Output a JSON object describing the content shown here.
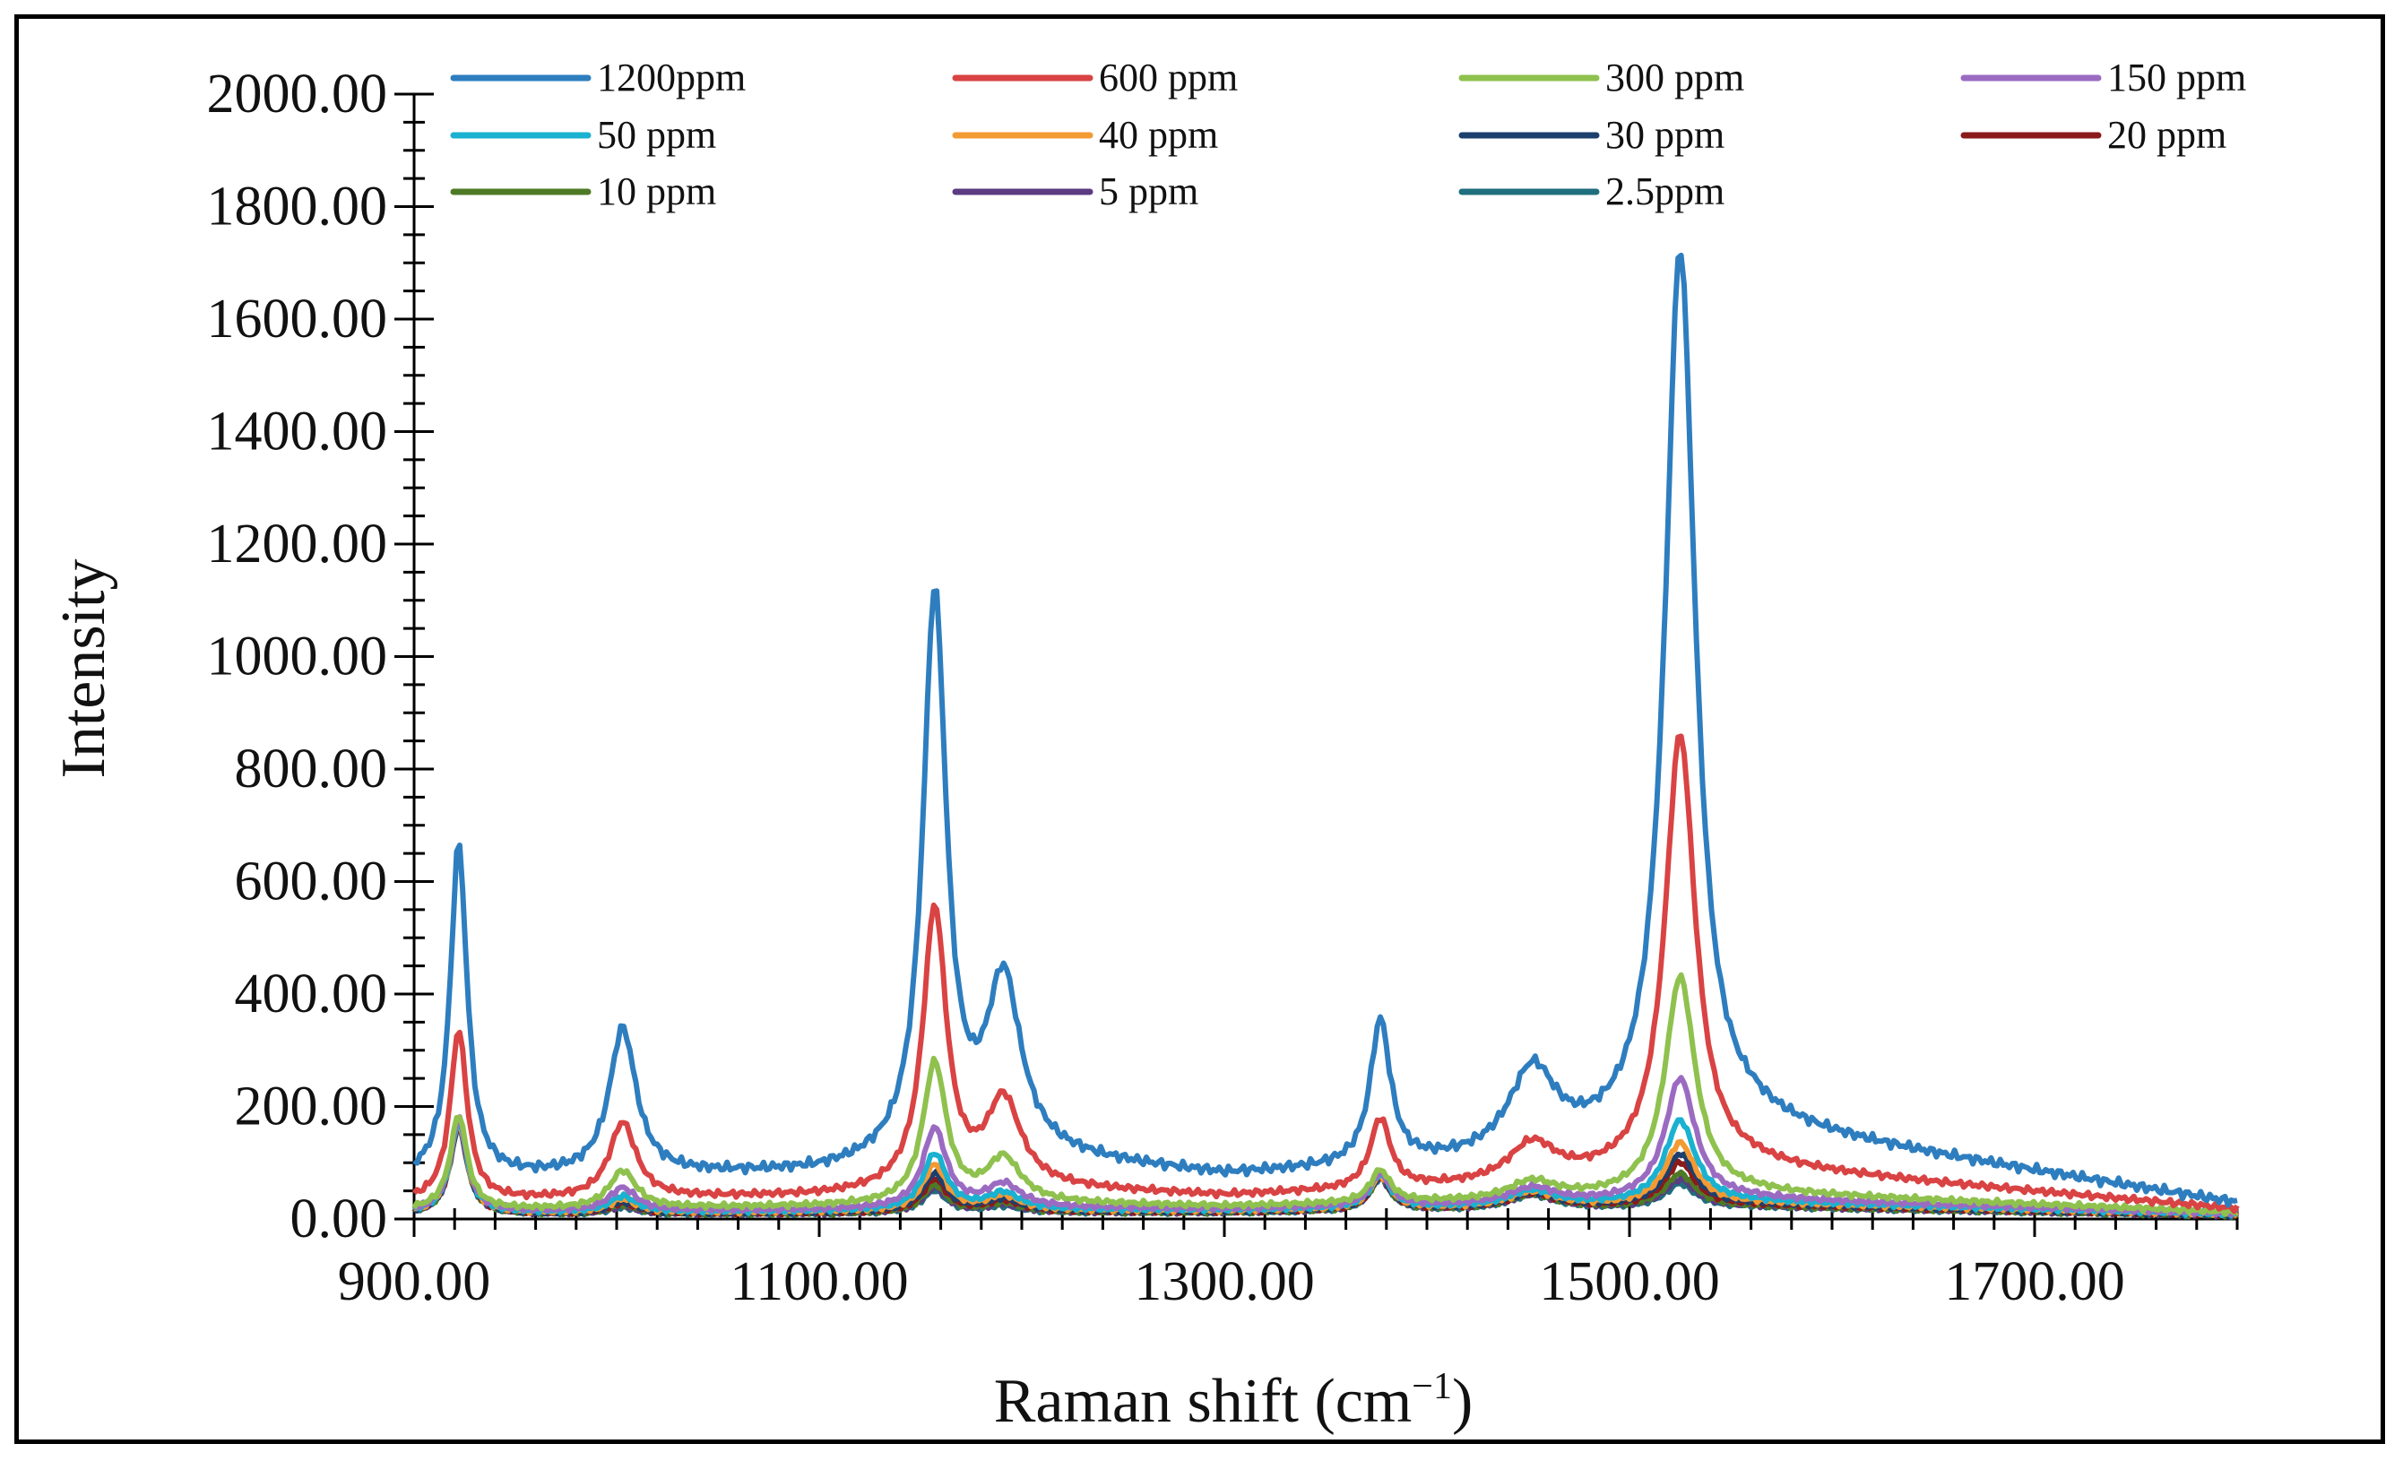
{
  "chart_data": {
    "type": "line",
    "title": "",
    "xlabel": "Raman shift (cm",
    "xlabel_sup": "−1",
    "xlabel_end": ")",
    "ylabel": "Intensity",
    "xlim": [
      900,
      1800
    ],
    "ylim": [
      0,
      2000
    ],
    "x_ticks": [
      "900.00",
      "1100.00",
      "1300.00",
      "1500.00",
      "1700.00"
    ],
    "y_ticks": [
      "0.00",
      "200.00",
      "400.00",
      "600.00",
      "800.00",
      "1000.00",
      "1200.00",
      "1400.00",
      "1600.00",
      "1800.00",
      "2000.00"
    ],
    "grid": false,
    "legend_position": "top",
    "peaks_cm1": [
      922,
      1003,
      1157,
      1191,
      1377,
      1452,
      1525
    ],
    "series": [
      {
        "name": "1200ppm",
        "color": "#2e7ebf",
        "baseline": [
          70,
          75,
          80,
          110,
          75,
          100,
          160,
          28
        ],
        "peaks": [
          665,
          335,
          1100,
          410,
          345,
          255,
          1720
        ]
      },
      {
        "name": "600 ppm",
        "color": "#d94343",
        "baseline": [
          30,
          35,
          40,
          55,
          40,
          60,
          90,
          18
        ],
        "peaks": [
          335,
          170,
          548,
          205,
          175,
          130,
          860
        ]
      },
      {
        "name": "300 ppm",
        "color": "#8fc14e",
        "baseline": [
          15,
          18,
          22,
          28,
          22,
          32,
          45,
          12
        ],
        "peaks": [
          185,
          85,
          275,
          105,
          85,
          65,
          430
        ]
      },
      {
        "name": "150 ppm",
        "color": "#9b6bc2",
        "baseline": [
          12,
          14,
          16,
          20,
          18,
          26,
          35,
          10
        ],
        "peaks": [
          180,
          55,
          160,
          60,
          80,
          55,
          250
        ]
      },
      {
        "name": "50 ppm",
        "color": "#1bb1d0",
        "baseline": [
          10,
          12,
          14,
          16,
          16,
          22,
          30,
          9
        ],
        "peaks": [
          175,
          40,
          115,
          45,
          78,
          50,
          175
        ]
      },
      {
        "name": "40 ppm",
        "color": "#f39a32",
        "baseline": [
          10,
          11,
          13,
          15,
          15,
          21,
          28,
          9
        ],
        "peaks": [
          172,
          35,
          95,
          40,
          76,
          48,
          135
        ]
      },
      {
        "name": "30 ppm",
        "color": "#1c3f6e",
        "baseline": [
          9,
          10,
          12,
          14,
          14,
          20,
          26,
          8
        ],
        "peaks": [
          170,
          30,
          80,
          35,
          75,
          46,
          115
        ]
      },
      {
        "name": "20 ppm",
        "color": "#8b1a1a",
        "baseline": [
          9,
          10,
          11,
          13,
          13,
          19,
          24,
          8
        ],
        "peaks": [
          168,
          28,
          70,
          32,
          74,
          45,
          100
        ]
      },
      {
        "name": "10 ppm",
        "color": "#4e7a25",
        "baseline": [
          8,
          9,
          10,
          12,
          12,
          18,
          22,
          7
        ],
        "peaks": [
          167,
          25,
          60,
          28,
          73,
          44,
          80
        ]
      },
      {
        "name": "5 ppm",
        "color": "#5b3b82",
        "baseline": [
          8,
          9,
          10,
          12,
          12,
          18,
          22,
          7
        ],
        "peaks": [
          166,
          22,
          55,
          25,
          72,
          43,
          70
        ]
      },
      {
        "name": "2.5ppm",
        "color": "#1f6e7d",
        "baseline": [
          8,
          9,
          10,
          12,
          12,
          17,
          21,
          7
        ],
        "peaks": [
          165,
          20,
          50,
          22,
          72,
          42,
          62
        ]
      }
    ]
  }
}
